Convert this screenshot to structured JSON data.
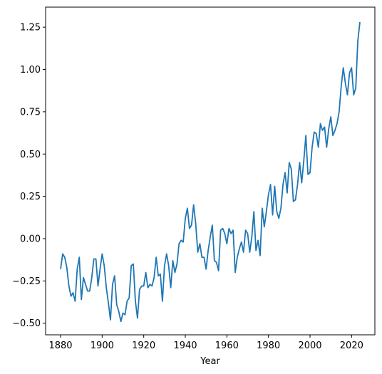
{
  "chart_data": {
    "type": "line",
    "title": "",
    "xlabel": "Year",
    "ylabel": "",
    "xlim": [
      1872.8,
      2031.2
    ],
    "ylim": [
      -0.5685,
      1.3685
    ],
    "xticks": [
      1880,
      1900,
      1920,
      1940,
      1960,
      1980,
      2000,
      2020
    ],
    "yticks": [
      -0.5,
      -0.25,
      0.0,
      0.25,
      0.5,
      0.75,
      1.0,
      1.25
    ],
    "ytick_labels": [
      "−0.50",
      "−0.25",
      "0.00",
      "0.25",
      "0.50",
      "0.75",
      "1.00",
      "1.25"
    ],
    "grid": false,
    "color": "#1f77b4",
    "series": [
      {
        "x": [
          1880,
          1881,
          1882,
          1883,
          1884,
          1885,
          1886,
          1887,
          1888,
          1889,
          1890,
          1891,
          1892,
          1893,
          1894,
          1895,
          1896,
          1897,
          1898,
          1899,
          1900,
          1901,
          1902,
          1903,
          1904,
          1905,
          1906,
          1907,
          1908,
          1909,
          1910,
          1911,
          1912,
          1913,
          1914,
          1915,
          1916,
          1917,
          1918,
          1919,
          1920,
          1921,
          1922,
          1923,
          1924,
          1925,
          1926,
          1927,
          1928,
          1929,
          1930,
          1931,
          1932,
          1933,
          1934,
          1935,
          1936,
          1937,
          1938,
          1939,
          1940,
          1941,
          1942,
          1943,
          1944,
          1945,
          1946,
          1947,
          1948,
          1949,
          1950,
          1951,
          1952,
          1953,
          1954,
          1955,
          1956,
          1957,
          1958,
          1959,
          1960,
          1961,
          1962,
          1963,
          1964,
          1965,
          1966,
          1967,
          1968,
          1969,
          1970,
          1971,
          1972,
          1973,
          1974,
          1975,
          1976,
          1977,
          1978,
          1979,
          1980,
          1981,
          1982,
          1983,
          1984,
          1985,
          1986,
          1987,
          1988,
          1989,
          1990,
          1991,
          1992,
          1993,
          1994,
          1995,
          1996,
          1997,
          1998,
          1999,
          2000,
          2001,
          2002,
          2003,
          2004,
          2005,
          2006,
          2007,
          2008,
          2009,
          2010,
          2011,
          2012,
          2013,
          2014,
          2015,
          2016,
          2017,
          2018,
          2019,
          2020,
          2021,
          2022,
          2023,
          2024
        ],
        "values": [
          -0.18,
          -0.09,
          -0.11,
          -0.17,
          -0.28,
          -0.34,
          -0.32,
          -0.37,
          -0.18,
          -0.11,
          -0.36,
          -0.23,
          -0.27,
          -0.31,
          -0.31,
          -0.23,
          -0.12,
          -0.12,
          -0.28,
          -0.18,
          -0.09,
          -0.16,
          -0.29,
          -0.38,
          -0.48,
          -0.27,
          -0.22,
          -0.39,
          -0.43,
          -0.49,
          -0.44,
          -0.45,
          -0.37,
          -0.35,
          -0.16,
          -0.15,
          -0.37,
          -0.47,
          -0.3,
          -0.28,
          -0.28,
          -0.2,
          -0.29,
          -0.27,
          -0.28,
          -0.23,
          -0.11,
          -0.22,
          -0.21,
          -0.37,
          -0.16,
          -0.09,
          -0.16,
          -0.29,
          -0.13,
          -0.2,
          -0.15,
          -0.03,
          -0.01,
          -0.02,
          0.12,
          0.18,
          0.06,
          0.08,
          0.2,
          0.09,
          -0.08,
          -0.03,
          -0.11,
          -0.11,
          -0.18,
          -0.07,
          0.01,
          0.08,
          -0.13,
          -0.14,
          -0.19,
          0.05,
          0.06,
          0.03,
          -0.03,
          0.06,
          0.03,
          0.05,
          -0.2,
          -0.11,
          -0.06,
          -0.02,
          -0.08,
          0.05,
          0.03,
          -0.08,
          0.01,
          0.16,
          -0.07,
          -0.01,
          -0.1,
          0.18,
          0.07,
          0.16,
          0.26,
          0.32,
          0.14,
          0.31,
          0.16,
          0.12,
          0.18,
          0.32,
          0.39,
          0.27,
          0.45,
          0.41,
          0.22,
          0.23,
          0.32,
          0.45,
          0.33,
          0.46,
          0.61,
          0.38,
          0.39,
          0.54,
          0.63,
          0.62,
          0.54,
          0.68,
          0.64,
          0.66,
          0.54,
          0.65,
          0.72,
          0.61,
          0.64,
          0.68,
          0.75,
          0.9,
          1.01,
          0.92,
          0.85,
          0.98,
          1.01,
          0.85,
          0.89,
          1.17,
          1.28
        ]
      }
    ]
  }
}
